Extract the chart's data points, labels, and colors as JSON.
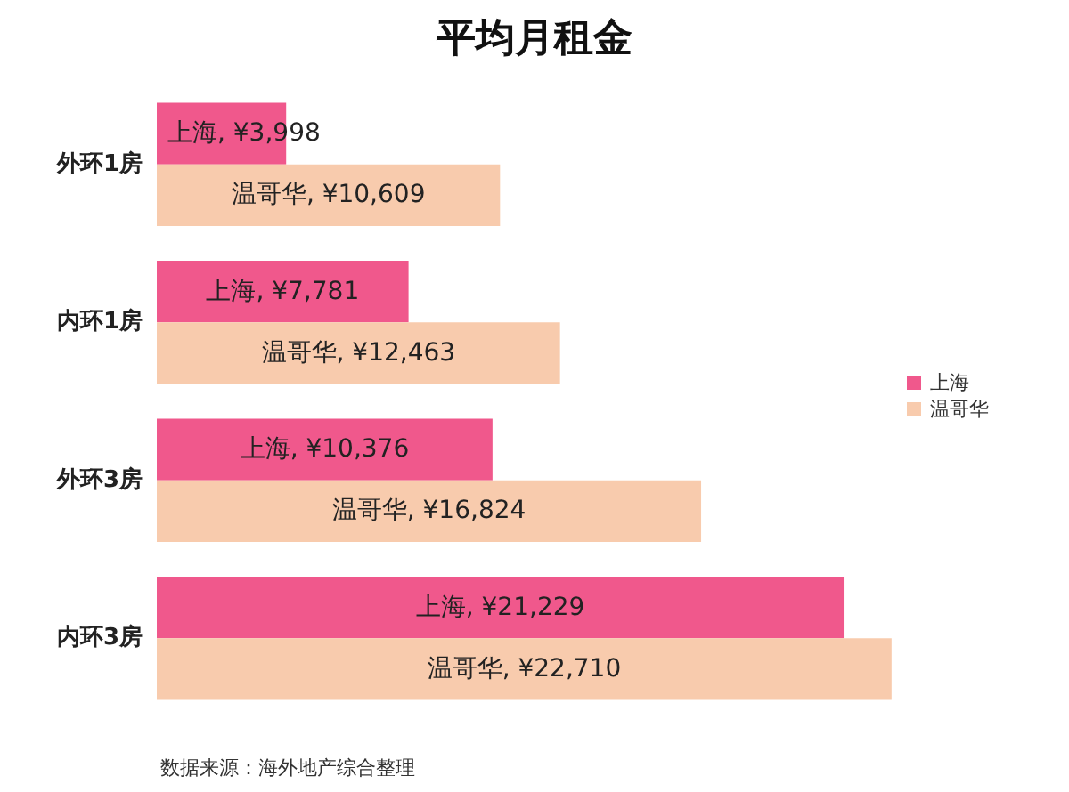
{
  "chart_data": {
    "type": "bar",
    "orientation": "horizontal",
    "title": "平均月租金",
    "categories": [
      "外环1房",
      "内环1房",
      "外环3房",
      "内环3房"
    ],
    "series": [
      {
        "name": "上海",
        "color": "#f0588c",
        "values": [
          3998,
          7781,
          10376,
          21229
        ],
        "value_labels": [
          "上海, ¥3,998",
          "上海, ¥7,781",
          "上海, ¥10,376",
          "上海, ¥21,229"
        ]
      },
      {
        "name": "温哥华",
        "color": "#f8cbad",
        "values": [
          10609,
          12463,
          16824,
          22710
        ],
        "value_labels": [
          "温哥华, ¥10,609",
          "温哥华, ¥12,463",
          "温哥华, ¥16,824",
          "温哥华, ¥22,710"
        ]
      }
    ],
    "legend": "right",
    "annotations": [
      "数据来源：海外地产综合整理"
    ]
  }
}
